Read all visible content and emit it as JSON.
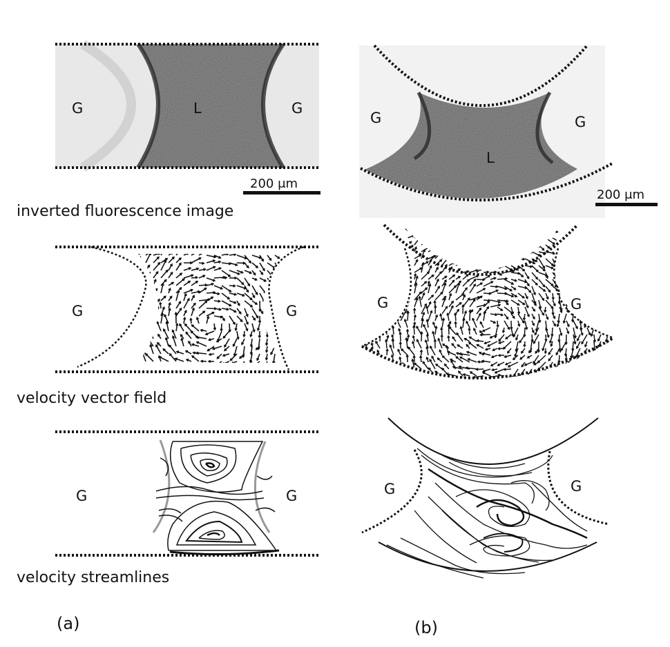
{
  "panel_a": {
    "row1": {
      "left_phase": "G",
      "liquid": "L",
      "right_phase": "G",
      "scale_bar": "200 μm",
      "caption": "inverted fluorescence image"
    },
    "row2": {
      "left_phase": "G",
      "right_phase": "G",
      "caption": "velocity vector field"
    },
    "row3": {
      "left_phase": "G",
      "right_phase": "G",
      "caption": "velocity streamlines"
    },
    "label": "(a)"
  },
  "panel_b": {
    "row1": {
      "left_phase": "G",
      "liquid": "L",
      "right_phase": "G",
      "scale_bar": "200 μm"
    },
    "row2": {
      "left_phase": "G",
      "right_phase": "G"
    },
    "row3": {
      "left_phase": "G",
      "right_phase": "G"
    },
    "label": "(b)"
  },
  "colors": {
    "ink": "#111111",
    "liquid_fill": "#9a9a9a",
    "gas_rim": "#2a2a2a",
    "streamline_grey": "#9a9a9a"
  }
}
